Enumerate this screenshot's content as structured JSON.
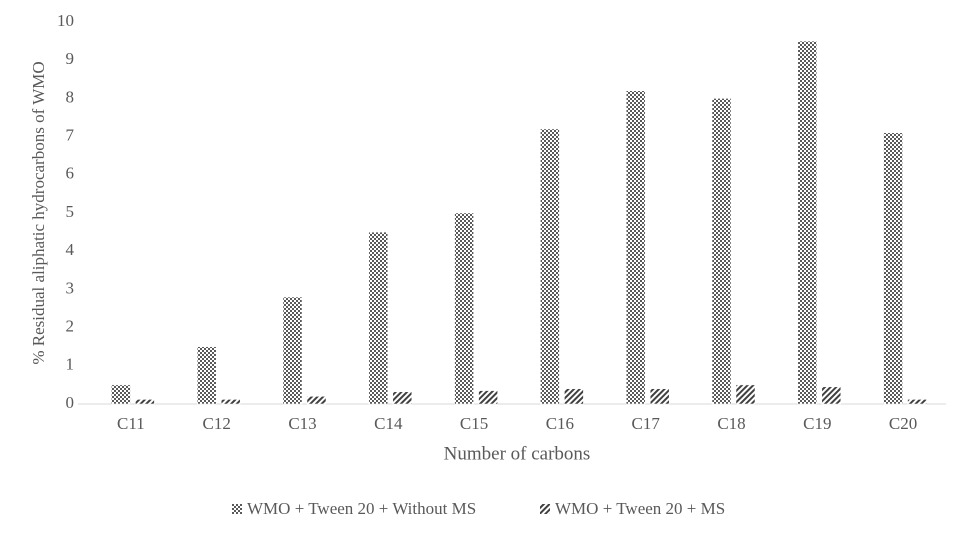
{
  "chart_data": {
    "type": "bar",
    "x_label": "Number of carbons",
    "y_label": "% Residual aliphatic hydrocarbons of WMO",
    "categories": [
      "C11",
      "C12",
      "C13",
      "C14",
      "C15",
      "C16",
      "C17",
      "C18",
      "C19",
      "C20"
    ],
    "series": [
      {
        "name": "WMO + Tween 20 + Without MS",
        "color": "#595959",
        "values": [
          0.5,
          1.5,
          2.8,
          4.5,
          5.0,
          7.2,
          8.2,
          8.0,
          9.5,
          7.1
        ]
      },
      {
        "name": "WMO + Tween 20 + MS",
        "color": "#404040",
        "values": [
          0.12,
          0.12,
          0.2,
          0.32,
          0.35,
          0.4,
          0.4,
          0.5,
          0.45,
          0.12
        ]
      }
    ],
    "ylim": [
      0,
      10
    ],
    "yticks": [
      0,
      1,
      2,
      3,
      4,
      5,
      6,
      7,
      8,
      9,
      10
    ],
    "grid": false,
    "legend": "bottom"
  }
}
